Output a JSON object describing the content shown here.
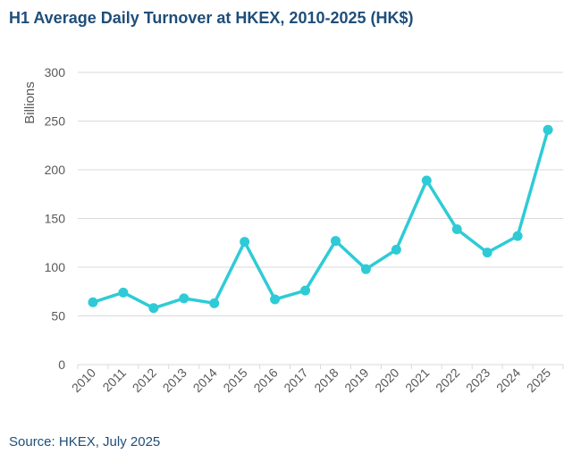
{
  "title": "H1 Average Daily Turnover at HKEX, 2010-2025 (HK$)",
  "source": "Source: HKEX, July 2025",
  "chart_data": {
    "type": "line",
    "title": "H1 Average Daily Turnover at HKEX, 2010-2025 (HK$)",
    "xlabel": "",
    "ylabel": "Billions",
    "categories": [
      "2010",
      "2011",
      "2012",
      "2013",
      "2014",
      "2015",
      "2016",
      "2017",
      "2018",
      "2019",
      "2020",
      "2021",
      "2022",
      "2023",
      "2024",
      "2025"
    ],
    "series": [
      {
        "values": [
          64,
          74,
          58,
          68,
          63,
          126,
          67,
          76,
          127,
          98,
          118,
          189,
          139,
          115,
          132,
          241
        ]
      }
    ],
    "ylim": [
      0,
      300
    ],
    "yticks": [
      0,
      50,
      100,
      150,
      200,
      250,
      300
    ],
    "grid": true,
    "line_color": "#2ecbd6",
    "grid_color": "#d9d9d9",
    "text_color": "#595959",
    "title_color": "#1f4e79"
  }
}
